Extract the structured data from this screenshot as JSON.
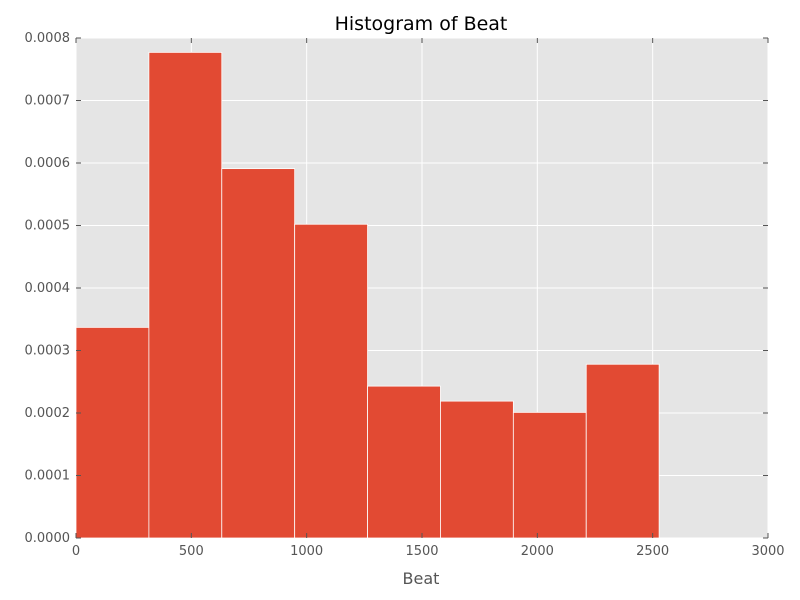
{
  "chart_data": {
    "type": "bar",
    "title": "Histogram of Beat",
    "xlabel": "Beat",
    "ylabel": "",
    "xlim": [
      0,
      3000
    ],
    "ylim": [
      0,
      0.0008
    ],
    "x_ticks": [
      "0",
      "500",
      "1000",
      "1500",
      "2000",
      "2500",
      "3000"
    ],
    "y_ticks": [
      "0.0000",
      "0.0001",
      "0.0002",
      "0.0003",
      "0.0004",
      "0.0005",
      "0.0006",
      "0.0007",
      "0.0008"
    ],
    "bin_edges": [
      0,
      316,
      632,
      948,
      1264,
      1580,
      1896,
      2212,
      2528
    ],
    "values": [
      0.000337,
      0.000777,
      0.000591,
      0.000502,
      0.000243,
      0.000219,
      0.000201,
      0.000278
    ],
    "grid": true,
    "colors": {
      "bar": "#e24a33",
      "plot_background": "#e5e5e5",
      "grid": "#ffffff",
      "tick_label": "#555555"
    }
  }
}
